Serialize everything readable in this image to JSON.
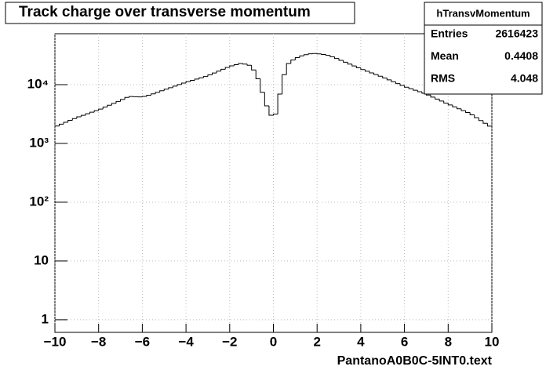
{
  "chart_data": {
    "type": "histogram",
    "title": "Track charge over transverse momentum",
    "x_label": "PantanoA0B0C-5INT0.text",
    "stats": {
      "name": "hTransvMomentum",
      "rows": [
        {
          "label": "Entries",
          "value": 2616423
        },
        {
          "label": "Mean",
          "value": 0.4408
        },
        {
          "label": "RMS",
          "value": 4.048
        }
      ]
    },
    "color": "#000000",
    "log_y": true,
    "grid": true,
    "xlim": [
      -10,
      10
    ],
    "ylim": [
      0.61,
      73600
    ],
    "xticks": [
      {
        "value": -10,
        "label": "−10"
      },
      {
        "value": -8,
        "label": "−8"
      },
      {
        "value": -6,
        "label": "−6"
      },
      {
        "value": -4,
        "label": "−4"
      },
      {
        "value": -2,
        "label": "−2"
      },
      0,
      2,
      4,
      6,
      8,
      10
    ],
    "yticks": [
      1,
      10,
      {
        "value": 100,
        "label": "10²"
      },
      {
        "value": 1000,
        "label": "10³"
      },
      {
        "value": 10000,
        "label": "10⁴"
      }
    ],
    "bins": [
      -10,
      -9.8,
      -9.6,
      -9.4,
      -9.2,
      -9,
      -8.8,
      -8.6,
      -8.4,
      -8.2,
      -8,
      -7.8,
      -7.6,
      -7.4,
      -7.2,
      -7,
      -6.8,
      -6.6,
      -6.4,
      -6.2,
      -6,
      -5.8,
      -5.6,
      -5.4,
      -5.2,
      -5,
      -4.8,
      -4.6,
      -4.4,
      -4.2,
      -4,
      -3.8,
      -3.6,
      -3.4,
      -3.2,
      -3,
      -2.8,
      -2.6,
      -2.4,
      -2.2,
      -2,
      -1.8,
      -1.6,
      -1.4,
      -1.2,
      -1,
      -0.8,
      -0.6,
      -0.4,
      -0.2,
      0,
      0.2,
      0.4,
      0.6,
      0.8,
      1,
      1.2,
      1.4,
      1.6,
      1.8,
      2,
      2.2,
      2.4,
      2.6,
      2.8,
      3,
      3.2,
      3.4,
      3.6,
      3.8,
      4,
      4.2,
      4.4,
      4.6,
      4.8,
      5,
      5.2,
      5.4,
      5.6,
      5.8,
      6,
      6.2,
      6.4,
      6.6,
      6.8,
      7,
      7.2,
      7.4,
      7.6,
      7.8,
      8,
      8.2,
      8.4,
      8.6,
      8.8,
      9,
      9.2,
      9.4,
      9.6,
      9.8,
      10
    ],
    "values": [
      1980,
      2130,
      2290,
      2470,
      2650,
      2840,
      3010,
      3200,
      3400,
      3610,
      3850,
      4150,
      4470,
      4810,
      5180,
      5600,
      6070,
      6290,
      6240,
      6190,
      6310,
      6610,
      6970,
      7410,
      7890,
      8370,
      8890,
      9440,
      10020,
      10640,
      11250,
      11830,
      12450,
      13090,
      13770,
      14660,
      15780,
      16980,
      18280,
      19680,
      20890,
      21880,
      22910,
      22390,
      21380,
      17780,
      12590,
      7410,
      4370,
      3020,
      3160,
      6920,
      14790,
      22910,
      26300,
      28840,
      30900,
      32360,
      33500,
      33880,
      33340,
      32590,
      31480,
      29850,
      27860,
      25940,
      24100,
      22390,
      20800,
      19320,
      18030,
      16900,
      15850,
      14860,
      13930,
      13000,
      12080,
      11220,
      10420,
      9680,
      9060,
      8530,
      8040,
      7570,
      7130,
      6650,
      6150,
      5690,
      5260,
      4860,
      4510,
      4190,
      3890,
      3610,
      3360,
      3060,
      2740,
      2450,
      2200,
      1970
    ]
  }
}
